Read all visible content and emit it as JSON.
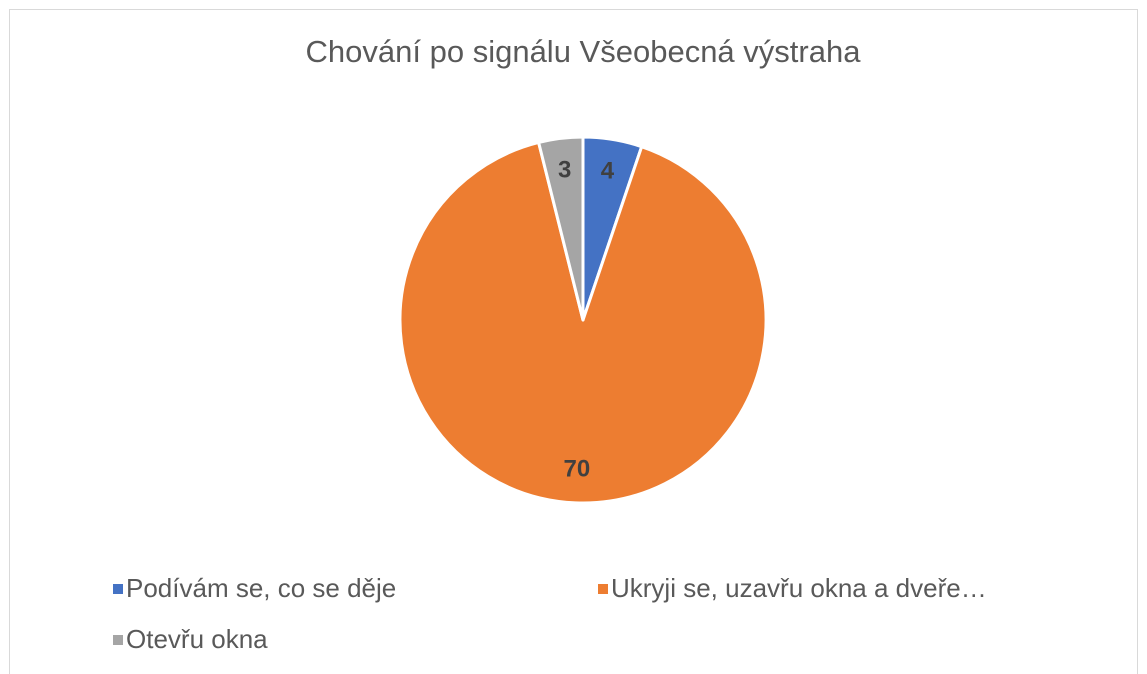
{
  "chart_data": {
    "type": "pie",
    "title": "Chování po signálu Všeobecná výstraha",
    "categories": [
      "Podívám se, co se děje",
      "Ukryji se, uzavřu okna a dveře…",
      "Otevřu okna"
    ],
    "values": [
      4,
      70,
      3
    ],
    "colors": [
      "#4472c4",
      "#ed7d31",
      "#a5a5a5"
    ],
    "legend": "bottom"
  }
}
